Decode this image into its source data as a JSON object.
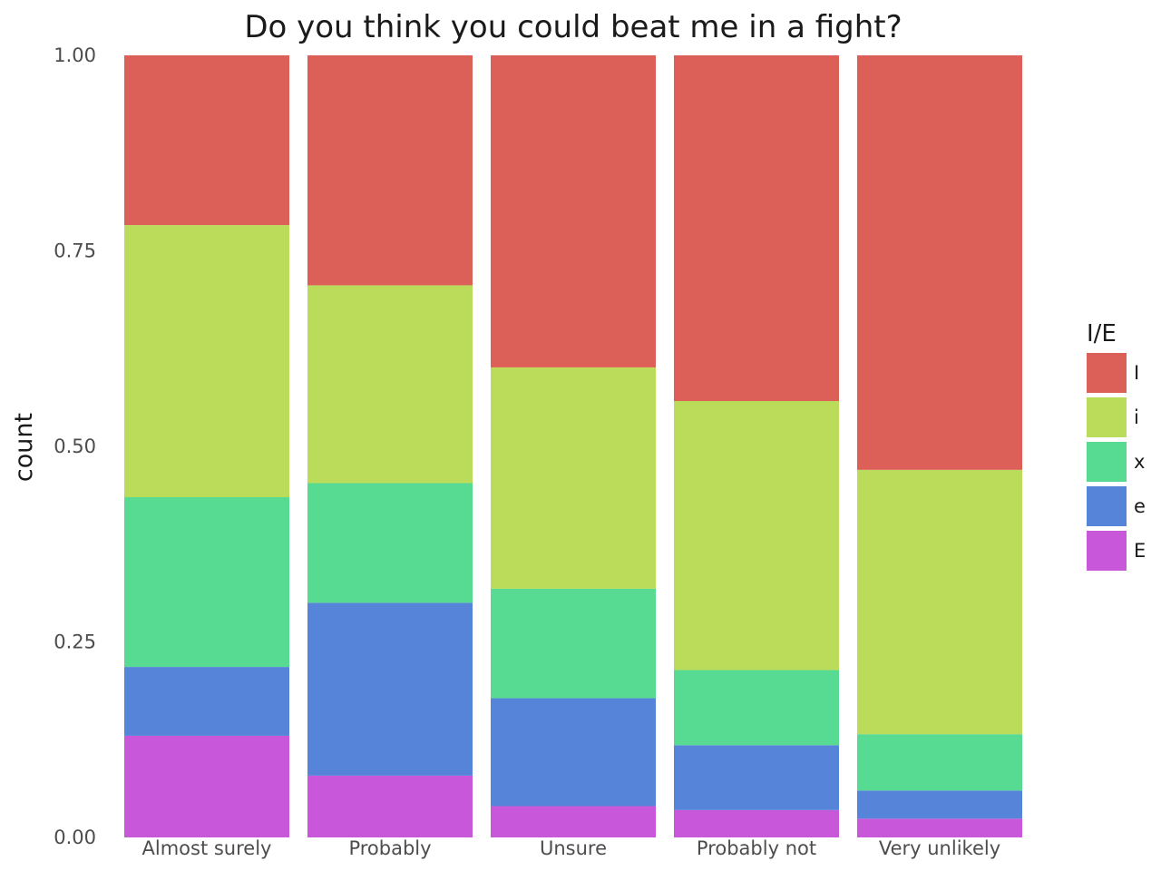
{
  "chart_data": {
    "type": "bar",
    "stacked": true,
    "normalized": true,
    "title": "Do you think you could beat me in a fight?",
    "xlabel": "",
    "ylabel": "count",
    "ylim": [
      0,
      1
    ],
    "yticks": [
      "0.00",
      "0.25",
      "0.50",
      "0.75",
      "1.00"
    ],
    "grid": false,
    "legend": {
      "title": "I/E",
      "position": "right"
    },
    "categories": [
      "Almost surely",
      "Probably",
      "Unsure",
      "Probably not",
      "Very unlikely"
    ],
    "series": [
      {
        "name": "I",
        "color": "#dc6057",
        "values": [
          0.217,
          0.294,
          0.399,
          0.442,
          0.53
        ]
      },
      {
        "name": "i",
        "color": "#bbdb5a",
        "values": [
          0.348,
          0.253,
          0.283,
          0.344,
          0.338
        ]
      },
      {
        "name": "x",
        "color": "#57da92",
        "values": [
          0.217,
          0.153,
          0.14,
          0.096,
          0.072
        ]
      },
      {
        "name": "e",
        "color": "#5584d9",
        "values": [
          0.088,
          0.221,
          0.138,
          0.083,
          0.036
        ]
      },
      {
        "name": "E",
        "color": "#c857d9",
        "values": [
          0.13,
          0.079,
          0.04,
          0.035,
          0.024
        ]
      }
    ]
  }
}
